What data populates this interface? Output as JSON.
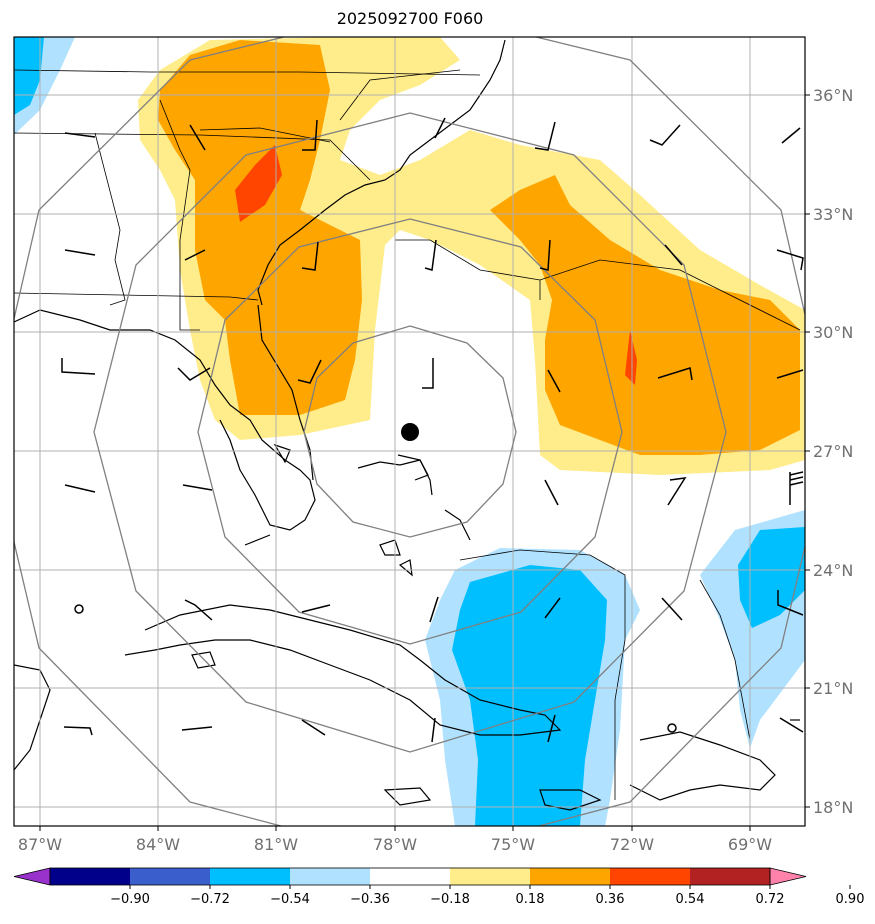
{
  "title": "2025092700 F060",
  "chart_data": {
    "type": "contour map",
    "title": "2025092700 F060",
    "projection": "lat-lon",
    "xlim": [
      -88,
      -67.5
    ],
    "ylim": [
      17.5,
      37.5
    ],
    "lon_ticks": [
      -87,
      -84,
      -81,
      -78,
      -75,
      -72,
      -69
    ],
    "lon_labels": [
      "87°W",
      "84°W",
      "81°W",
      "78°W",
      "75°W",
      "72°W",
      "69°W"
    ],
    "lat_ticks": [
      18,
      21,
      24,
      27,
      30,
      33,
      36
    ],
    "lat_labels": [
      "18°N",
      "21°N",
      "24°N",
      "27°N",
      "30°N",
      "33°N",
      "36°N"
    ],
    "grid": true,
    "center_marker": {
      "lon": -77.9,
      "lat": 27.5
    },
    "range_rings": [
      3,
      6,
      9,
      12
    ],
    "colorbar": {
      "orientation": "horizontal",
      "extend": "both",
      "levels": [
        -0.9,
        -0.72,
        -0.54,
        -0.36,
        -0.18,
        0.18,
        0.36,
        0.54,
        0.72,
        0.9
      ],
      "tick_labels": [
        "−0.90",
        "−0.72",
        "−0.54",
        "−0.36",
        "−0.18",
        "0.18",
        "0.36",
        "0.54",
        "0.72",
        "0.90"
      ],
      "colors": [
        "#9932cc",
        "#00008b",
        "#3a5fcd",
        "#00bfff",
        "#b0e2ff",
        "#ffffff",
        "#ffec8b",
        "#ffa500",
        "#ff4500",
        "#b22222",
        "#ff82ab"
      ]
    }
  }
}
